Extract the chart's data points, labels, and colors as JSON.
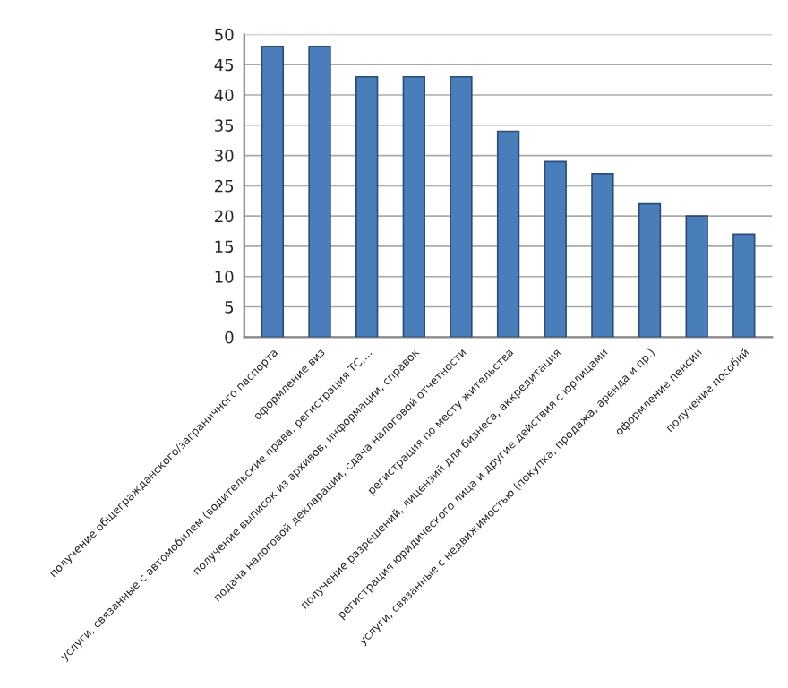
{
  "chart_data": {
    "type": "bar",
    "categories": [
      "получение общегражданского/заграничного паспорта",
      "оформление виз",
      "услуги, связанные с автомобилем (водительские права, регистрация ТС,...",
      "получение выписок из архивов, информации, справок",
      "подача налоговой декларации, сдача налоговой отчетности",
      "регистрация по месту жительства",
      "получение разрешений, лицензий для бизнеса, аккредитация",
      "регистрация юридического лица и другие действия с юрлицами",
      "услуги, связанные с недвижимостью (покупка, продажа, аренда и пр.)",
      "оформление пенсии",
      "получение пособий"
    ],
    "values": [
      48,
      48,
      43,
      43,
      43,
      34,
      29,
      27,
      22,
      20,
      17
    ],
    "color": "#4a7ebb",
    "ylim": [
      0,
      50
    ],
    "yticks": [
      0,
      5,
      10,
      15,
      20,
      25,
      30,
      35,
      40,
      45,
      50
    ],
    "grid": "y"
  }
}
